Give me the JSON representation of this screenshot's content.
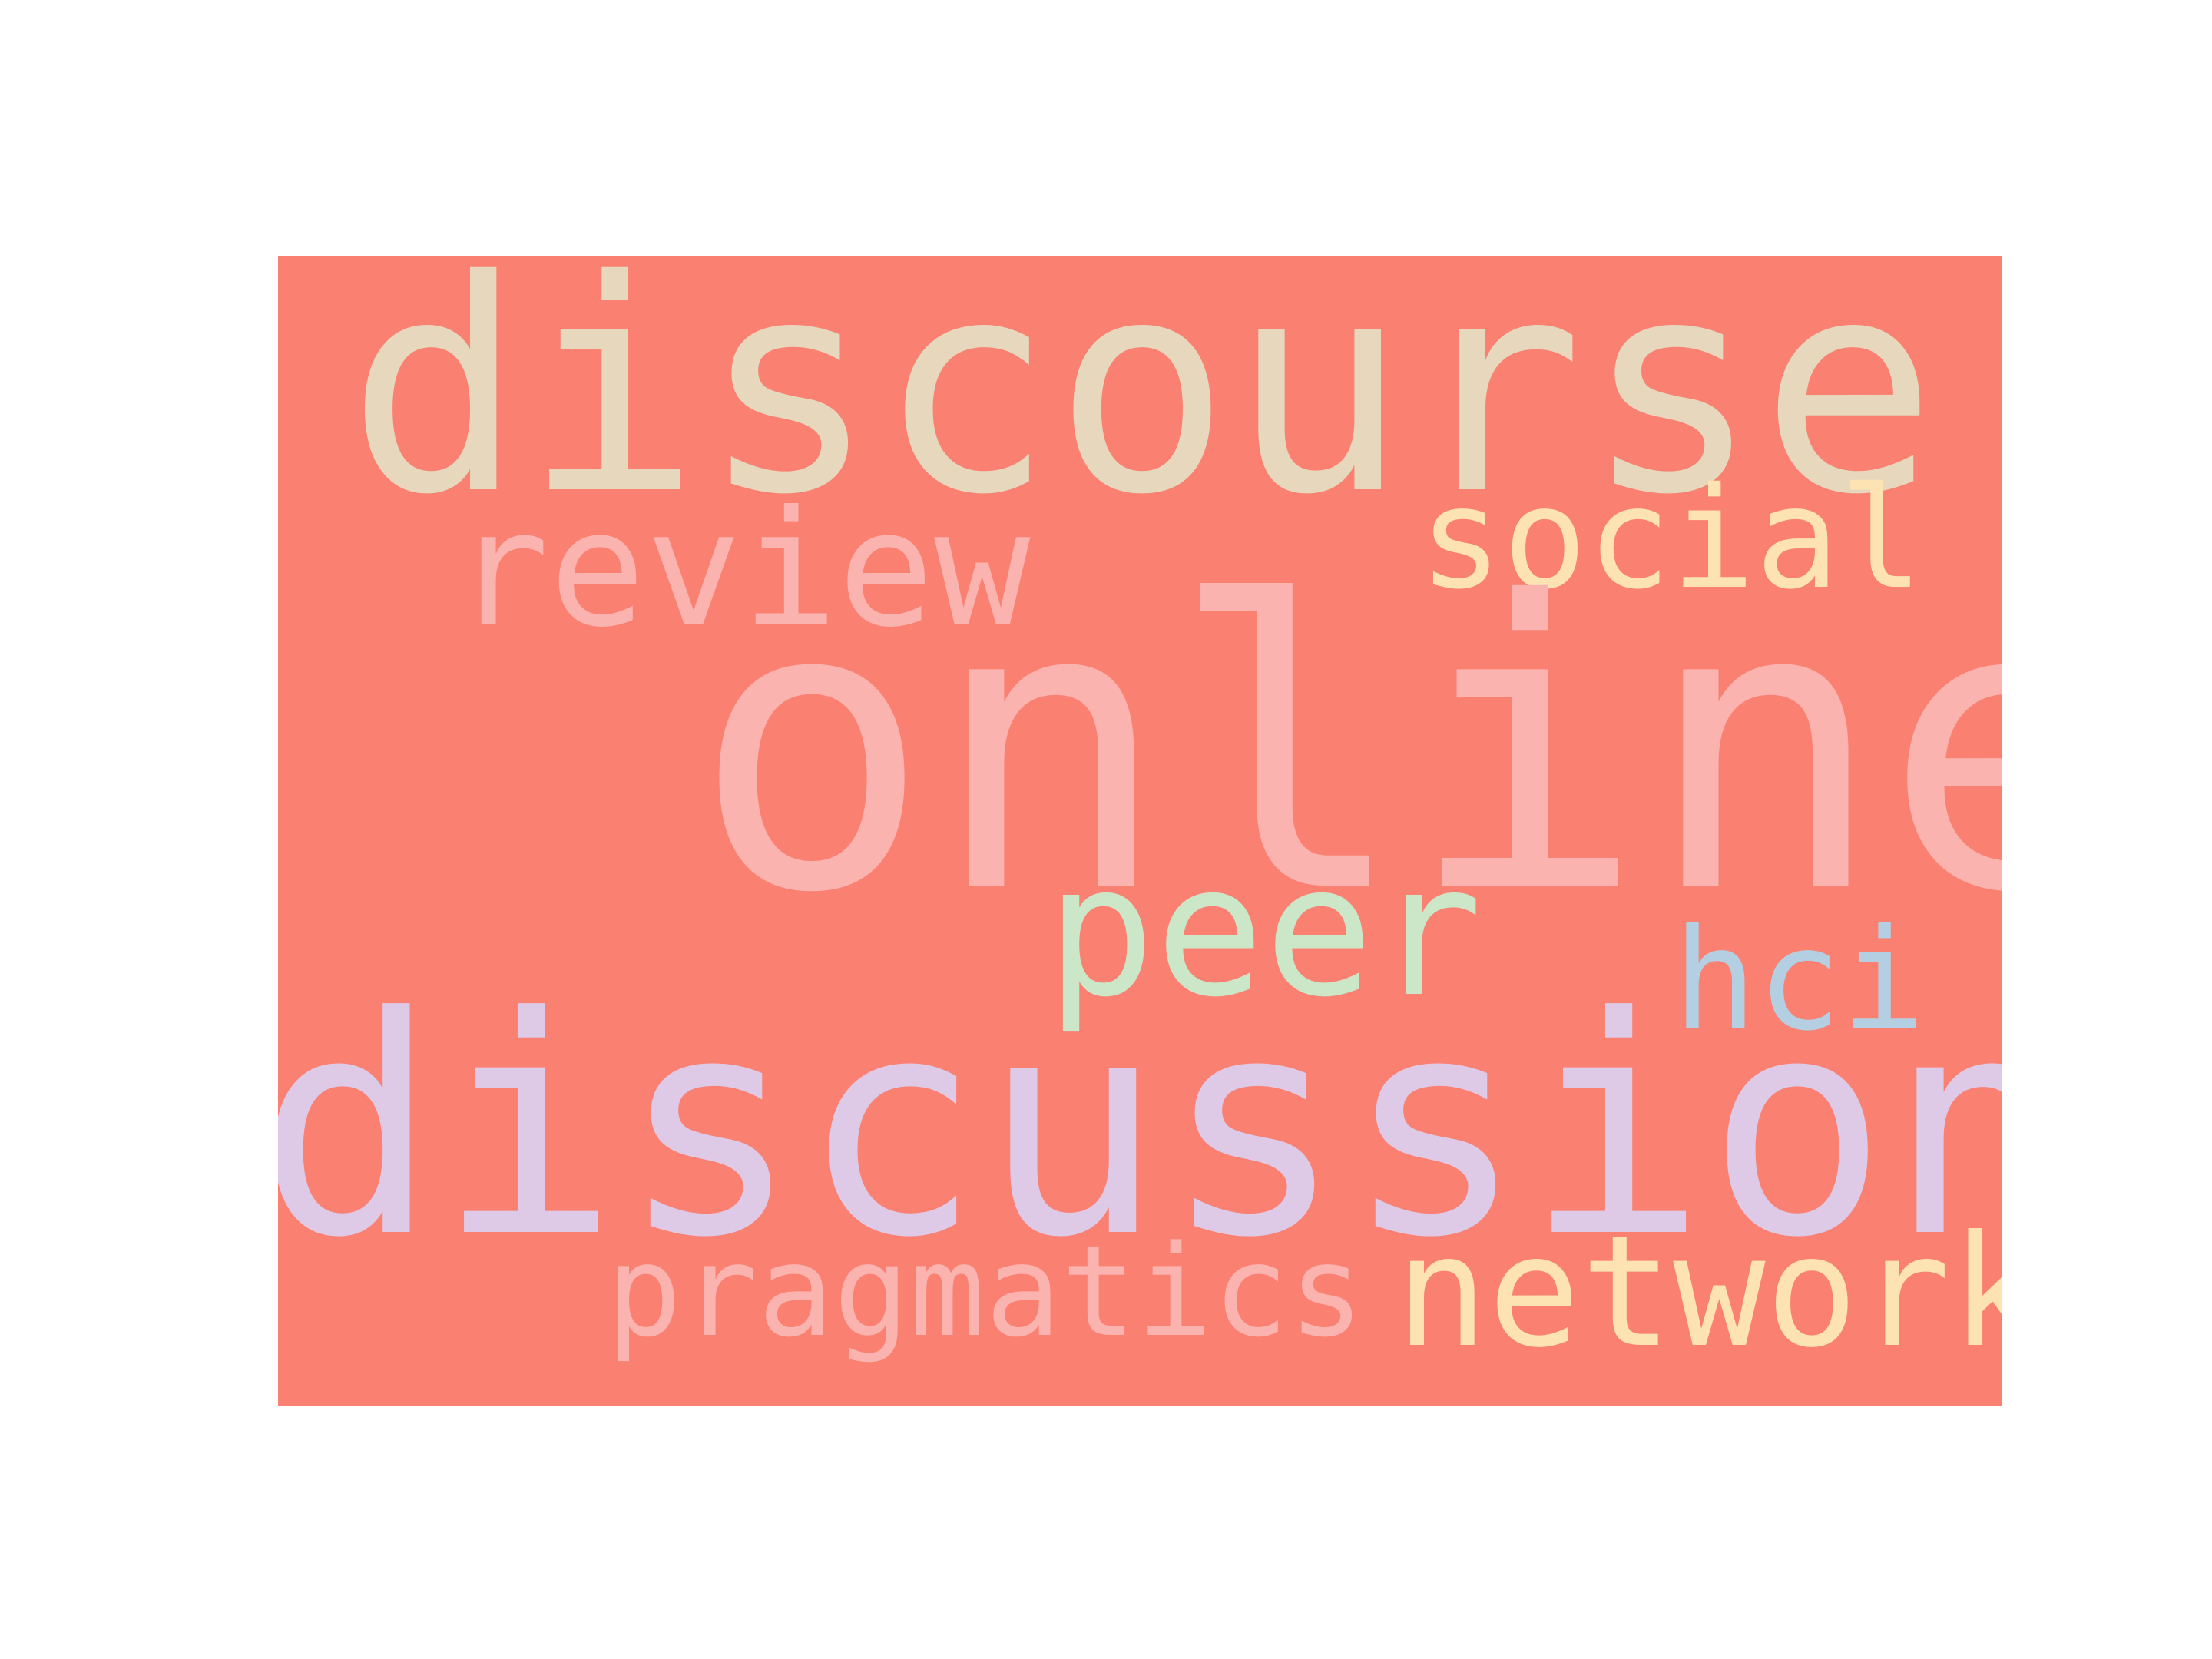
{
  "cloud": {
    "background_color": "#fa8072",
    "words": [
      {
        "id": "discourse",
        "text": "discourse",
        "color": "#e6d7bd"
      },
      {
        "id": "review",
        "text": "review",
        "color": "#fab3af"
      },
      {
        "id": "social",
        "text": "social",
        "color": "#fde3b2"
      },
      {
        "id": "online",
        "text": "online",
        "color": "#fab3af"
      },
      {
        "id": "peer",
        "text": "peer",
        "color": "#cce6c8"
      },
      {
        "id": "hci",
        "text": "hci",
        "color": "#b4cfe1"
      },
      {
        "id": "discussion",
        "text": "discussion",
        "color": "#decae6"
      },
      {
        "id": "pragmatics",
        "text": "pragmatics",
        "color": "#fab3af"
      },
      {
        "id": "network",
        "text": "network",
        "color": "#fde3b2"
      }
    ]
  }
}
